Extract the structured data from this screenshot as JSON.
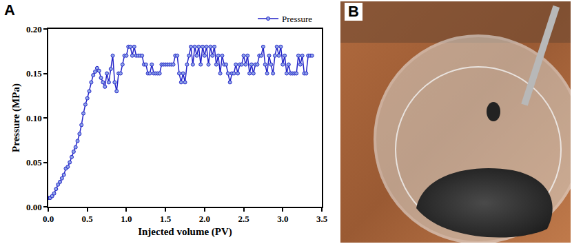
{
  "panel_labels": [
    "A",
    "B"
  ],
  "chart_data": {
    "type": "line",
    "x_label": "Injected volume (PV)",
    "y_label": "Pressure (MPa)",
    "xlim": [
      0,
      3.5
    ],
    "ylim": [
      0,
      0.2
    ],
    "xticks": [
      {
        "value": 0,
        "label": "0.0"
      },
      0.5,
      {
        "value": 1,
        "label": "1.0"
      },
      1.5,
      {
        "value": 2,
        "label": "2.0"
      },
      2.5,
      {
        "value": 3,
        "label": "3.0"
      },
      3.5
    ],
    "yticks": [
      {
        "value": 0,
        "label": "0.00"
      },
      0.05,
      {
        "value": 0.1,
        "label": "0.10"
      },
      0.15,
      {
        "value": 0.2,
        "label": "0.20"
      }
    ],
    "grid": false,
    "legend": "top right",
    "x": [
      0,
      0.025,
      0.05,
      0.075,
      0.1,
      0.125,
      0.15,
      0.175,
      0.2,
      0.225,
      0.25,
      0.275,
      0.3,
      0.325,
      0.35,
      0.375,
      0.4,
      0.425,
      0.45,
      0.475,
      0.5,
      0.525,
      0.55,
      0.575,
      0.6,
      0.625,
      0.65,
      0.675,
      0.7,
      0.725,
      0.75,
      0.775,
      0.8,
      0.825,
      0.85,
      0.875,
      0.9,
      0.925,
      0.95,
      0.975,
      1.0,
      1.025,
      1.05,
      1.075,
      1.1,
      1.125,
      1.15,
      1.175,
      1.2,
      1.225,
      1.25,
      1.275,
      1.3,
      1.325,
      1.35,
      1.375,
      1.4,
      1.425,
      1.45,
      1.475,
      1.5,
      1.525,
      1.55,
      1.575,
      1.6,
      1.625,
      1.65,
      1.675,
      1.7,
      1.725,
      1.75,
      1.775,
      1.8,
      1.825,
      1.85,
      1.875,
      1.9,
      1.925,
      1.95,
      1.975,
      2.0,
      2.025,
      2.05,
      2.075,
      2.1,
      2.125,
      2.15,
      2.175,
      2.2,
      2.225,
      2.25,
      2.275,
      2.3,
      2.325,
      2.35,
      2.375,
      2.4,
      2.425,
      2.45,
      2.475,
      2.5,
      2.525,
      2.55,
      2.575,
      2.6,
      2.625,
      2.65,
      2.675,
      2.7,
      2.725,
      2.75,
      2.775,
      2.8,
      2.825,
      2.85,
      2.875,
      2.9,
      2.925,
      2.95,
      2.975,
      3.0,
      3.025,
      3.05,
      3.075,
      3.1,
      3.125,
      3.15,
      3.175,
      3.2,
      3.225,
      3.25,
      3.275,
      3.3,
      3.325,
      3.35,
      3.375
    ],
    "series": [
      {
        "name": "Pressure",
        "color": "#2323c8",
        "marker": "circle",
        "line_style": "solid",
        "values": [
          0.01,
          0.01,
          0.012,
          0.015,
          0.02,
          0.025,
          0.028,
          0.032,
          0.036,
          0.043,
          0.045,
          0.05,
          0.056,
          0.062,
          0.067,
          0.074,
          0.082,
          0.092,
          0.105,
          0.115,
          0.122,
          0.13,
          0.14,
          0.148,
          0.152,
          0.156,
          0.153,
          0.145,
          0.14,
          0.135,
          0.15,
          0.14,
          0.155,
          0.17,
          0.14,
          0.13,
          0.15,
          0.15,
          0.16,
          0.17,
          0.17,
          0.18,
          0.18,
          0.17,
          0.18,
          0.17,
          0.17,
          0.17,
          0.17,
          0.16,
          0.16,
          0.15,
          0.15,
          0.16,
          0.15,
          0.15,
          0.15,
          0.15,
          0.16,
          0.16,
          0.16,
          0.16,
          0.16,
          0.16,
          0.16,
          0.17,
          0.17,
          0.15,
          0.14,
          0.15,
          0.14,
          0.16,
          0.17,
          0.18,
          0.16,
          0.18,
          0.17,
          0.18,
          0.16,
          0.18,
          0.17,
          0.18,
          0.16,
          0.18,
          0.17,
          0.18,
          0.16,
          0.17,
          0.15,
          0.17,
          0.16,
          0.16,
          0.15,
          0.14,
          0.15,
          0.15,
          0.16,
          0.15,
          0.16,
          0.16,
          0.17,
          0.16,
          0.17,
          0.15,
          0.16,
          0.15,
          0.16,
          0.16,
          0.17,
          0.17,
          0.18,
          0.16,
          0.15,
          0.17,
          0.16,
          0.15,
          0.17,
          0.18,
          0.17,
          0.18,
          0.16,
          0.17,
          0.15,
          0.16,
          0.15,
          0.15,
          0.15,
          0.15,
          0.17,
          0.16,
          0.17,
          0.15,
          0.15,
          0.17,
          0.17,
          0.17
        ]
      }
    ]
  }
}
